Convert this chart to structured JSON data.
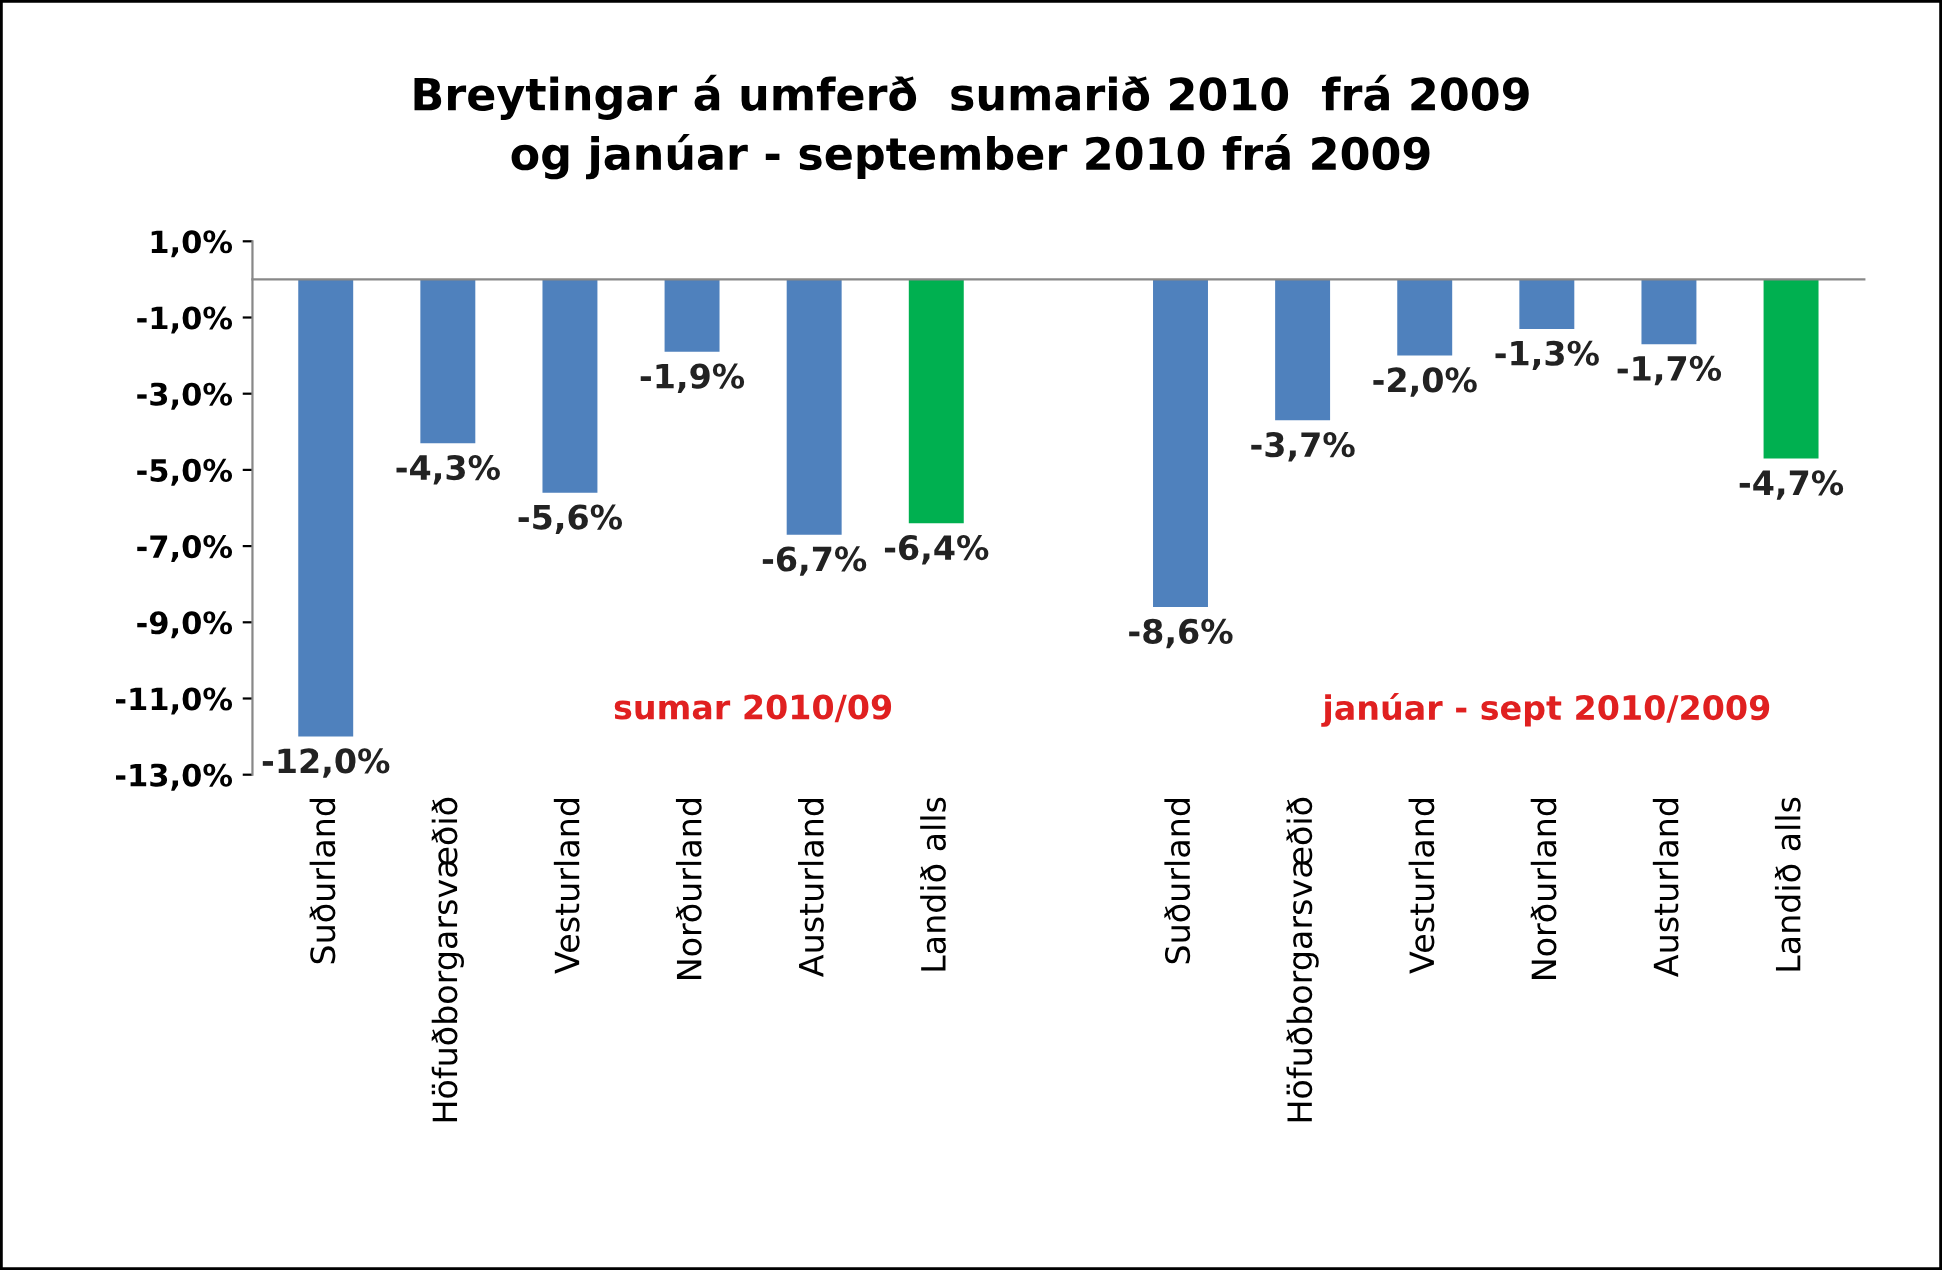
{
  "chart_data": {
    "type": "bar",
    "title": "Breytingar á umferð  sumarið 2010  frá 2009\nog janúar - september 2010 frá 2009",
    "categories": [
      "Suðurland",
      "Höfuðborgarsvæðið",
      "Vesturland",
      "Norðurland",
      "Austurland",
      "Landið alls",
      null,
      "Suðurland",
      "Höfuðborgarsvæðið",
      "Vesturland",
      "Norðurland",
      "Austurland",
      "Landið alls"
    ],
    "values": [
      -12.0,
      -4.3,
      -5.6,
      -1.9,
      -6.7,
      -6.4,
      null,
      -8.6,
      -3.7,
      -2.0,
      -1.3,
      -1.7,
      -4.7
    ],
    "colors": [
      "#4f81bd",
      "#4f81bd",
      "#4f81bd",
      "#4f81bd",
      "#4f81bd",
      "#00b050",
      null,
      "#4f81bd",
      "#4f81bd",
      "#4f81bd",
      "#4f81bd",
      "#4f81bd",
      "#00b050"
    ],
    "value_labels": [
      "-12,0%",
      "-4,3%",
      "-5,6%",
      "-1,9%",
      "-6,7%",
      "-6,4%",
      null,
      "-8,6%",
      "-3,7%",
      "-2,0%",
      "-1,3%",
      "-1,7%",
      "-4,7%"
    ],
    "ylim": [
      -13,
      1
    ],
    "yticks": [
      {
        "value": 1,
        "label": "1,0%"
      },
      {
        "value": -1,
        "label": "-1,0%"
      },
      {
        "value": -3,
        "label": "-3,0%"
      },
      {
        "value": -5,
        "label": "-5,0%"
      },
      {
        "value": -7,
        "label": "-7,0%"
      },
      {
        "value": -9,
        "label": "-9,0%"
      },
      {
        "value": -11,
        "label": "-11,0%"
      },
      {
        "value": -13,
        "label": "-13,0%"
      }
    ],
    "annotations": [
      "sumar 2010/09",
      "janúar - sept 2010/2009"
    ],
    "grid": false,
    "legend": false
  }
}
